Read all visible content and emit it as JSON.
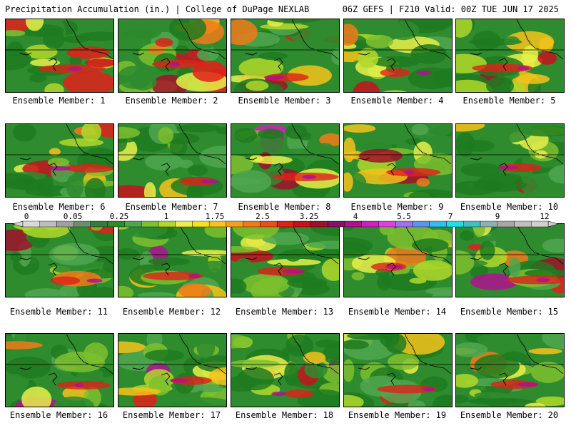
{
  "header": {
    "left": "Precipitation Accumulation (in.) | College of DuPage NEXLAB",
    "right": "06Z GEFS | F210 Valid: 00Z TUE JUN 17 2025"
  },
  "colorbar": {
    "tick_labels": [
      "0",
      "0.05",
      "0.25",
      "1",
      "1.75",
      "2.5",
      "3.25",
      "4",
      "5.5",
      "7",
      "9",
      "12"
    ],
    "colors": [
      "#d9d9d9",
      "#bdbdbd",
      "#a0a0a0",
      "#6e8f6e",
      "#3a7a3a",
      "#2e8b2e",
      "#4fa64f",
      "#7ec02e",
      "#b0d82a",
      "#e8f04a",
      "#f5e31f",
      "#f7c41a",
      "#f5a11a",
      "#f07a1a",
      "#e8501a",
      "#e0201a",
      "#c8101e",
      "#a0102a",
      "#8a1060",
      "#b01090",
      "#d020c0",
      "#e040e0",
      "#a070f0",
      "#6090f0",
      "#30c0f0",
      "#20e0e0",
      "#40c0c0",
      "#8fb0b0",
      "#a8a8a8",
      "#c0c0c0",
      "#d0d0d0"
    ]
  },
  "members": [
    {
      "label": "Ensemble Member: 1"
    },
    {
      "label": "Ensemble Member: 2"
    },
    {
      "label": "Ensemble Member: 3"
    },
    {
      "label": "Ensemble Member: 4"
    },
    {
      "label": "Ensemble Member: 5"
    },
    {
      "label": "Ensemble Member: 6"
    },
    {
      "label": "Ensemble Member: 7"
    },
    {
      "label": "Ensemble Member: 8"
    },
    {
      "label": "Ensemble Member: 9"
    },
    {
      "label": "Ensemble Member: 10"
    },
    {
      "label": "Ensemble Member: 11"
    },
    {
      "label": "Ensemble Member: 12"
    },
    {
      "label": "Ensemble Member: 13"
    },
    {
      "label": "Ensemble Member: 14"
    },
    {
      "label": "Ensemble Member: 15"
    },
    {
      "label": "Ensemble Member: 16"
    },
    {
      "label": "Ensemble Member: 17"
    },
    {
      "label": "Ensemble Member: 18"
    },
    {
      "label": "Ensemble Member: 19"
    },
    {
      "label": "Ensemble Member: 20"
    }
  ]
}
